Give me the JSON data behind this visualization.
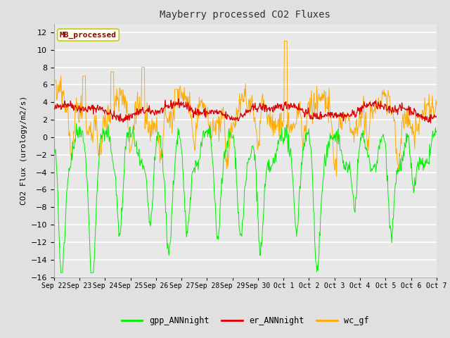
{
  "title": "Mayberry processed CO2 Fluxes",
  "ylabel": "CO2 Flux (urology/m2/s)",
  "ylim": [
    -16,
    13
  ],
  "yticks": [
    -16,
    -14,
    -12,
    -10,
    -8,
    -6,
    -4,
    -2,
    0,
    2,
    4,
    6,
    8,
    10,
    12
  ],
  "background_color": "#e0e0e0",
  "plot_bg_color": "#e8e8e8",
  "grid_color": "white",
  "legend_label": "MB_processed",
  "legend_text_color": "#8b0000",
  "legend_box_color": "#fffff0",
  "legend_box_edge": "#cccc00",
  "line_colors": {
    "gpp": "#00ee00",
    "er": "#dd0000",
    "wc": "#ffaa00"
  },
  "legend_entries": [
    "gpp_ANNnight",
    "er_ANNnight",
    "wc_gf"
  ],
  "n_points": 720,
  "seed": 42,
  "x_tick_labels": [
    "Sep 22",
    "Sep 23",
    "Sep 24",
    "Sep 25",
    "Sep 26",
    "Sep 27",
    "Sep 28",
    "Sep 29",
    "Sep 30",
    "Oct 1",
    "Oct 2",
    "Oct 3",
    "Oct 4",
    "Oct 5",
    "Oct 6",
    "Oct 7"
  ]
}
